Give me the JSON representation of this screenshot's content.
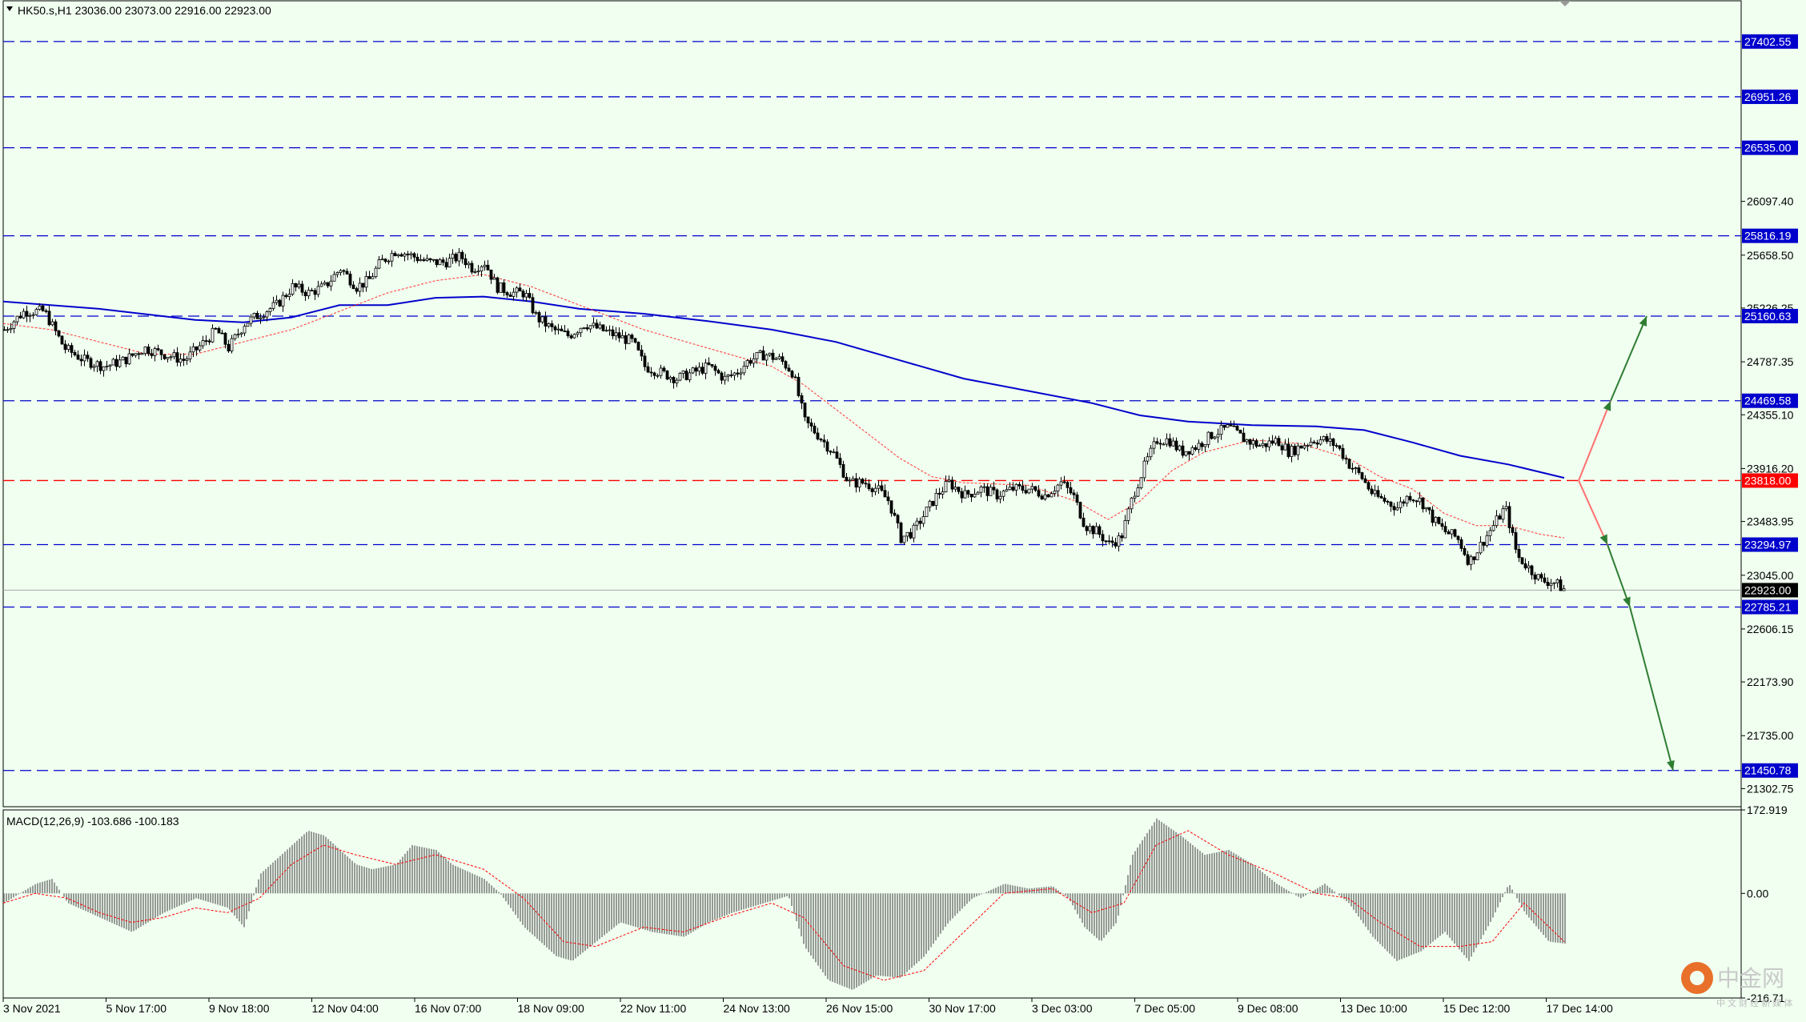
{
  "header": {
    "symbol_text": "HK50.s,H1  23036.00 23073.00 22916.00 22923.00"
  },
  "macd_header": {
    "text": "MACD(12,26,9) -103.686 -100.183"
  },
  "watermark": {
    "brand": "中金网",
    "sub": "中 文 财 经 新 媒 体"
  },
  "colors": {
    "background": "#F0FFF0",
    "candle": "#000000",
    "ma_slow": "#0000CC",
    "ma_fast": "#FF3333",
    "level_line": "#0000CC",
    "current_level": "#FF0000",
    "arrow": "#2E7D32",
    "macd_hist": "#808080",
    "macd_signal": "#FF0000"
  },
  "chart_data": {
    "type": "candlestick",
    "symbol": "HK50.s",
    "timeframe": "H1",
    "last": {
      "open": 23036.0,
      "high": 23073.0,
      "low": 22916.0,
      "close": 22923.0
    },
    "price_ylim": [
      21155,
      27735
    ],
    "price_ticks": [
      "26097.40",
      "25658.50",
      "25226.25",
      "24787.35",
      "24355.10",
      "23916.20",
      "23483.95",
      "23045.00",
      "22606.15",
      "22173.90",
      "21735.00",
      "21302.75"
    ],
    "levels": [
      {
        "value": 27402.55,
        "label": "27402.55",
        "color": "#0000CC"
      },
      {
        "value": 26951.26,
        "label": "26951.26",
        "color": "#0000CC"
      },
      {
        "value": 26535.0,
        "label": "26535.00",
        "color": "#0000CC"
      },
      {
        "value": 25816.19,
        "label": "25816.19",
        "color": "#0000CC"
      },
      {
        "value": 25160.63,
        "label": "25160.63",
        "color": "#0000CC"
      },
      {
        "value": 24469.58,
        "label": "24469.58",
        "color": "#0000CC"
      },
      {
        "value": 23818.0,
        "label": "23818.00",
        "color": "#FF0000"
      },
      {
        "value": 23294.97,
        "label": "23294.97",
        "color": "#0000CC"
      },
      {
        "value": 22785.21,
        "label": "22785.21",
        "color": "#0000CC"
      },
      {
        "value": 21450.78,
        "label": "21450.78",
        "color": "#0000CC"
      }
    ],
    "current_price": {
      "value": 22923.0,
      "label": "22923.00"
    },
    "x_labels": [
      "3 Nov 2021",
      "5 Nov 17:00",
      "9 Nov 18:00",
      "12 Nov 04:00",
      "16 Nov 07:00",
      "18 Nov 09:00",
      "22 Nov 11:00",
      "24 Nov 13:00",
      "26 Nov 15:00",
      "30 Nov 17:00",
      "3 Dec 03:00",
      "7 Dec 05:00",
      "9 Dec 08:00",
      "13 Dec 10:00",
      "15 Dec 12:00",
      "17 Dec 14:00"
    ],
    "close_path": [
      [
        0,
        25050
      ],
      [
        25,
        25200
      ],
      [
        50,
        25200
      ],
      [
        75,
        24900
      ],
      [
        100,
        24800
      ],
      [
        125,
        24750
      ],
      [
        150,
        24800
      ],
      [
        175,
        24900
      ],
      [
        200,
        24850
      ],
      [
        225,
        24800
      ],
      [
        250,
        24950
      ],
      [
        265,
        25050
      ],
      [
        280,
        24900
      ],
      [
        300,
        25100
      ],
      [
        325,
        25200
      ],
      [
        340,
        25250
      ],
      [
        360,
        25400
      ],
      [
        380,
        25350
      ],
      [
        400,
        25400
      ],
      [
        420,
        25550
      ],
      [
        440,
        25400
      ],
      [
        455,
        25450
      ],
      [
        470,
        25600
      ],
      [
        490,
        25700
      ],
      [
        510,
        25650
      ],
      [
        530,
        25600
      ],
      [
        550,
        25600
      ],
      [
        570,
        25650
      ],
      [
        585,
        25550
      ],
      [
        600,
        25600
      ],
      [
        615,
        25400
      ],
      [
        635,
        25350
      ],
      [
        650,
        25350
      ],
      [
        665,
        25150
      ],
      [
        685,
        25050
      ],
      [
        705,
        25000
      ],
      [
        725,
        25100
      ],
      [
        745,
        25050
      ],
      [
        765,
        25000
      ],
      [
        785,
        24950
      ],
      [
        800,
        24750
      ],
      [
        820,
        24700
      ],
      [
        840,
        24650
      ],
      [
        860,
        24700
      ],
      [
        880,
        24750
      ],
      [
        900,
        24650
      ],
      [
        915,
        24700
      ],
      [
        930,
        24800
      ],
      [
        950,
        24850
      ],
      [
        970,
        24800
      ],
      [
        985,
        24700
      ],
      [
        1000,
        24300
      ],
      [
        1015,
        24200
      ],
      [
        1035,
        24050
      ],
      [
        1055,
        23800
      ],
      [
        1075,
        23800
      ],
      [
        1090,
        23750
      ],
      [
        1105,
        23650
      ],
      [
        1120,
        23350
      ],
      [
        1135,
        23400
      ],
      [
        1150,
        23550
      ],
      [
        1165,
        23700
      ],
      [
        1180,
        23800
      ],
      [
        1200,
        23700
      ],
      [
        1220,
        23750
      ],
      [
        1240,
        23700
      ],
      [
        1260,
        23750
      ],
      [
        1280,
        23750
      ],
      [
        1300,
        23700
      ],
      [
        1320,
        23800
      ],
      [
        1335,
        23700
      ],
      [
        1350,
        23450
      ],
      [
        1365,
        23400
      ],
      [
        1380,
        23300
      ],
      [
        1395,
        23350
      ],
      [
        1410,
        23700
      ],
      [
        1425,
        23950
      ],
      [
        1440,
        24150
      ],
      [
        1455,
        24150
      ],
      [
        1470,
        24050
      ],
      [
        1490,
        24100
      ],
      [
        1510,
        24200
      ],
      [
        1530,
        24250
      ],
      [
        1550,
        24150
      ],
      [
        1570,
        24100
      ],
      [
        1590,
        24150
      ],
      [
        1605,
        24050
      ],
      [
        1620,
        24100
      ],
      [
        1635,
        24150
      ],
      [
        1650,
        24150
      ],
      [
        1665,
        24100
      ],
      [
        1680,
        23950
      ],
      [
        1695,
        23850
      ],
      [
        1710,
        23700
      ],
      [
        1725,
        23650
      ],
      [
        1740,
        23600
      ],
      [
        1755,
        23700
      ],
      [
        1770,
        23650
      ],
      [
        1785,
        23500
      ],
      [
        1800,
        23400
      ],
      [
        1815,
        23350
      ],
      [
        1830,
        23150
      ],
      [
        1845,
        23300
      ],
      [
        1860,
        23450
      ],
      [
        1875,
        23600
      ],
      [
        1890,
        23200
      ],
      [
        1905,
        23100
      ],
      [
        1920,
        23000
      ],
      [
        1935,
        22990
      ],
      [
        1950,
        22923
      ]
    ],
    "ma_slow_path": [
      [
        0,
        25280
      ],
      [
        120,
        25220
      ],
      [
        240,
        25130
      ],
      [
        300,
        25110
      ],
      [
        360,
        25150
      ],
      [
        420,
        25250
      ],
      [
        480,
        25250
      ],
      [
        540,
        25310
      ],
      [
        600,
        25320
      ],
      [
        660,
        25280
      ],
      [
        720,
        25220
      ],
      [
        800,
        25180
      ],
      [
        880,
        25120
      ],
      [
        960,
        25050
      ],
      [
        1040,
        24950
      ],
      [
        1120,
        24800
      ],
      [
        1200,
        24650
      ],
      [
        1280,
        24550
      ],
      [
        1360,
        24450
      ],
      [
        1420,
        24350
      ],
      [
        1480,
        24300
      ],
      [
        1560,
        24270
      ],
      [
        1640,
        24260
      ],
      [
        1700,
        24230
      ],
      [
        1760,
        24130
      ],
      [
        1820,
        24020
      ],
      [
        1880,
        23950
      ],
      [
        1950,
        23840
      ]
    ],
    "ma_fast_path": [
      [
        0,
        25100
      ],
      [
        60,
        25050
      ],
      [
        120,
        24950
      ],
      [
        180,
        24850
      ],
      [
        240,
        24850
      ],
      [
        300,
        24950
      ],
      [
        360,
        25050
      ],
      [
        420,
        25200
      ],
      [
        480,
        25350
      ],
      [
        540,
        25450
      ],
      [
        600,
        25500
      ],
      [
        660,
        25400
      ],
      [
        720,
        25250
      ],
      [
        800,
        25050
      ],
      [
        880,
        24900
      ],
      [
        960,
        24750
      ],
      [
        1000,
        24600
      ],
      [
        1040,
        24400
      ],
      [
        1080,
        24200
      ],
      [
        1120,
        24000
      ],
      [
        1160,
        23850
      ],
      [
        1200,
        23800
      ],
      [
        1280,
        23780
      ],
      [
        1340,
        23650
      ],
      [
        1380,
        23500
      ],
      [
        1420,
        23650
      ],
      [
        1460,
        23900
      ],
      [
        1500,
        24050
      ],
      [
        1560,
        24150
      ],
      [
        1620,
        24120
      ],
      [
        1680,
        24000
      ],
      [
        1720,
        23850
      ],
      [
        1760,
        23750
      ],
      [
        1800,
        23550
      ],
      [
        1840,
        23450
      ],
      [
        1880,
        23450
      ],
      [
        1920,
        23380
      ],
      [
        1950,
        23350
      ]
    ],
    "projection": {
      "bull": [
        [
          1972,
          23818
        ],
        [
          2012,
          24469.58
        ],
        [
          2057,
          25160.63
        ]
      ],
      "bear": [
        [
          1972,
          23818
        ],
        [
          2008,
          23294.97
        ],
        [
          2036,
          22785.21
        ],
        [
          2090,
          21450.78
        ]
      ]
    },
    "macd": {
      "name": "MACD(12,26,9)",
      "value_main": -103.686,
      "value_signal": -100.183,
      "ylim": [
        -216.71,
        172.919
      ],
      "ticks": [
        "172.919",
        "0.00",
        "-216.71"
      ],
      "hist_path": [
        [
          0,
          -20
        ],
        [
          40,
          20
        ],
        [
          60,
          30
        ],
        [
          80,
          -20
        ],
        [
          120,
          -50
        ],
        [
          160,
          -80
        ],
        [
          200,
          -40
        ],
        [
          240,
          -10
        ],
        [
          280,
          -30
        ],
        [
          300,
          -70
        ],
        [
          320,
          40
        ],
        [
          360,
          100
        ],
        [
          380,
          130
        ],
        [
          400,
          120
        ],
        [
          420,
          90
        ],
        [
          440,
          60
        ],
        [
          460,
          50
        ],
        [
          490,
          60
        ],
        [
          510,
          100
        ],
        [
          540,
          90
        ],
        [
          560,
          60
        ],
        [
          600,
          30
        ],
        [
          620,
          0
        ],
        [
          650,
          -70
        ],
        [
          690,
          -130
        ],
        [
          710,
          -140
        ],
        [
          740,
          -100
        ],
        [
          770,
          -60
        ],
        [
          810,
          -80
        ],
        [
          850,
          -90
        ],
        [
          880,
          -60
        ],
        [
          910,
          -40
        ],
        [
          950,
          -20
        ],
        [
          980,
          -5
        ],
        [
          1000,
          -110
        ],
        [
          1030,
          -180
        ],
        [
          1060,
          -200
        ],
        [
          1090,
          -170
        ],
        [
          1120,
          -175
        ],
        [
          1150,
          -130
        ],
        [
          1180,
          -60
        ],
        [
          1210,
          -10
        ],
        [
          1250,
          20
        ],
        [
          1280,
          10
        ],
        [
          1310,
          15
        ],
        [
          1330,
          -10
        ],
        [
          1350,
          -70
        ],
        [
          1370,
          -100
        ],
        [
          1390,
          -60
        ],
        [
          1410,
          80
        ],
        [
          1440,
          155
        ],
        [
          1470,
          120
        ],
        [
          1500,
          80
        ],
        [
          1530,
          90
        ],
        [
          1560,
          60
        ],
        [
          1590,
          20
        ],
        [
          1620,
          -10
        ],
        [
          1650,
          20
        ],
        [
          1680,
          -20
        ],
        [
          1710,
          -90
        ],
        [
          1740,
          -140
        ],
        [
          1770,
          -120
        ],
        [
          1800,
          -80
        ],
        [
          1830,
          -140
        ],
        [
          1860,
          -50
        ],
        [
          1880,
          20
        ],
        [
          1900,
          -40
        ],
        [
          1930,
          -100
        ],
        [
          1950,
          -104
        ]
      ],
      "signal_path": [
        [
          0,
          -20
        ],
        [
          40,
          0
        ],
        [
          80,
          -10
        ],
        [
          120,
          -40
        ],
        [
          160,
          -60
        ],
        [
          200,
          -50
        ],
        [
          240,
          -30
        ],
        [
          280,
          -40
        ],
        [
          320,
          -10
        ],
        [
          360,
          60
        ],
        [
          400,
          100
        ],
        [
          440,
          80
        ],
        [
          490,
          60
        ],
        [
          540,
          80
        ],
        [
          600,
          50
        ],
        [
          650,
          -10
        ],
        [
          700,
          -100
        ],
        [
          740,
          -110
        ],
        [
          800,
          -70
        ],
        [
          850,
          -80
        ],
        [
          900,
          -50
        ],
        [
          960,
          -20
        ],
        [
          1000,
          -50
        ],
        [
          1050,
          -150
        ],
        [
          1100,
          -180
        ],
        [
          1150,
          -160
        ],
        [
          1200,
          -80
        ],
        [
          1250,
          0
        ],
        [
          1310,
          10
        ],
        [
          1360,
          -40
        ],
        [
          1400,
          -20
        ],
        [
          1440,
          100
        ],
        [
          1480,
          130
        ],
        [
          1530,
          80
        ],
        [
          1590,
          40
        ],
        [
          1640,
          0
        ],
        [
          1680,
          -10
        ],
        [
          1720,
          -60
        ],
        [
          1770,
          -110
        ],
        [
          1820,
          -110
        ],
        [
          1860,
          -100
        ],
        [
          1900,
          -20
        ],
        [
          1950,
          -100
        ]
      ]
    }
  }
}
